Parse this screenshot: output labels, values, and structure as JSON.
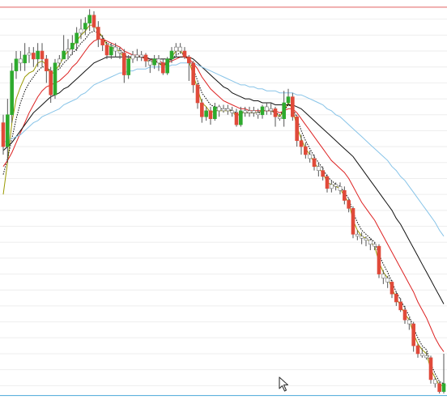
{
  "chart_data": {
    "type": "candlestick",
    "title": "",
    "xlabel": "",
    "ylabel": "",
    "grid": true,
    "ylim": [
      0,
      100
    ],
    "reference_lines": [
      {
        "value": 99.0,
        "color": "#e06060"
      },
      {
        "value": 1.5,
        "color": "#4aa8d8"
      }
    ],
    "colors": {
      "up": "#2eaa2e",
      "down": "#e04a3a",
      "neutral": "#ffffff",
      "wick": "#555555",
      "grid": "#eeeeee"
    },
    "candles": [
      [
        70.0,
        64.0,
        72.0,
        62.0
      ],
      [
        64.0,
        72.0,
        76.0,
        60.0
      ],
      [
        72.0,
        83.0,
        85.0,
        70.0
      ],
      [
        83.0,
        86.0,
        88.0,
        81.0
      ],
      [
        86.0,
        85.0,
        88.0,
        83.0
      ],
      [
        85.0,
        87.0,
        90.0,
        83.0
      ],
      [
        87.0,
        87.5,
        89.0,
        85.0
      ],
      [
        87.5,
        86.0,
        89.0,
        84.0
      ],
      [
        86.0,
        88.0,
        90.0,
        84.0
      ],
      [
        88.0,
        86.0,
        90.0,
        84.0
      ],
      [
        86.0,
        83.0,
        87.0,
        80.0
      ],
      [
        83.0,
        77.0,
        84.0,
        75.0
      ],
      [
        77.0,
        85.0,
        86.0,
        76.0
      ],
      [
        85.0,
        86.0,
        87.0,
        84.0
      ],
      [
        86.0,
        88.0,
        92.0,
        86.0
      ],
      [
        88.0,
        88.5,
        91.0,
        86.0
      ],
      [
        88.5,
        90.0,
        92.0,
        87.0
      ],
      [
        90.0,
        92.5,
        94.0,
        88.0
      ],
      [
        92.5,
        93.5,
        96.0,
        91.0
      ],
      [
        93.5,
        95.0,
        96.5,
        92.0
      ],
      [
        95.0,
        97.0,
        98.5,
        93.0
      ],
      [
        97.0,
        94.0,
        98.0,
        93.0
      ],
      [
        94.0,
        91.0,
        95.5,
        89.0
      ],
      [
        91.0,
        89.5,
        92.0,
        88.0
      ],
      [
        89.5,
        87.0,
        90.0,
        86.0
      ],
      [
        87.0,
        89.0,
        90.0,
        86.0
      ],
      [
        89.0,
        88.0,
        90.0,
        86.5
      ],
      [
        88.0,
        87.5,
        89.0,
        86.0
      ],
      [
        87.5,
        82.0,
        88.5,
        80.0
      ],
      [
        82.0,
        86.0,
        87.0,
        81.0
      ],
      [
        86.0,
        87.0,
        88.0,
        85.0
      ],
      [
        87.0,
        86.5,
        88.5,
        85.5
      ],
      [
        86.5,
        87.0,
        88.0,
        85.5
      ],
      [
        87.0,
        85.5,
        87.5,
        84.0
      ],
      [
        85.5,
        84.5,
        86.0,
        82.5
      ],
      [
        84.5,
        86.0,
        87.0,
        83.5
      ],
      [
        86.0,
        85.0,
        87.0,
        83.0
      ],
      [
        85.0,
        82.5,
        86.0,
        82.0
      ],
      [
        82.5,
        86.0,
        86.5,
        82.0
      ],
      [
        86.0,
        88.0,
        89.0,
        85.0
      ],
      [
        88.0,
        89.0,
        90.0,
        86.5
      ],
      [
        89.0,
        88.0,
        90.0,
        87.5
      ],
      [
        88.0,
        86.5,
        89.0,
        86.0
      ],
      [
        86.5,
        85.0,
        87.0,
        80.5
      ],
      [
        85.0,
        79.5,
        85.5,
        77.5
      ],
      [
        79.5,
        75.0,
        80.0,
        73.5
      ],
      [
        75.0,
        71.5,
        76.0,
        70.0
      ],
      [
        71.5,
        73.0,
        74.0,
        70.5
      ],
      [
        73.0,
        71.0,
        74.0,
        69.5
      ],
      [
        71.0,
        74.0,
        75.0,
        70.5
      ],
      [
        74.0,
        73.0,
        74.5,
        71.5
      ],
      [
        73.0,
        73.5,
        74.5,
        72.5
      ],
      [
        73.5,
        73.0,
        74.5,
        72.0
      ],
      [
        73.0,
        72.5,
        74.0,
        71.5
      ],
      [
        72.5,
        69.5,
        73.5,
        69.0
      ],
      [
        69.5,
        73.0,
        74.0,
        69.0
      ],
      [
        73.0,
        72.5,
        74.0,
        71.5
      ],
      [
        72.5,
        73.0,
        74.0,
        71.5
      ],
      [
        73.0,
        72.5,
        74.0,
        71.5
      ],
      [
        72.5,
        72.0,
        73.5,
        71.0
      ],
      [
        72.0,
        74.0,
        74.5,
        71.0
      ],
      [
        74.0,
        73.0,
        75.0,
        72.0
      ],
      [
        73.0,
        73.5,
        75.0,
        72.0
      ],
      [
        73.5,
        71.5,
        74.0,
        69.0
      ],
      [
        71.5,
        71.0,
        72.0,
        70.5
      ],
      [
        71.0,
        75.0,
        78.0,
        69.0
      ],
      [
        75.0,
        76.5,
        78.5,
        74.5
      ],
      [
        76.5,
        71.5,
        77.5,
        70.5
      ],
      [
        71.5,
        65.5,
        72.0,
        64.0
      ],
      [
        65.5,
        64.0,
        67.0,
        62.0
      ],
      [
        64.0,
        62.0,
        65.0,
        61.0
      ],
      [
        62.0,
        61.0,
        63.0,
        60.0
      ],
      [
        61.0,
        59.0,
        62.0,
        58.0
      ],
      [
        59.0,
        58.0,
        60.0,
        56.5
      ],
      [
        58.0,
        56.5,
        59.0,
        55.5
      ],
      [
        56.5,
        53.5,
        57.0,
        52.5
      ],
      [
        53.5,
        54.5,
        55.5,
        52.5
      ],
      [
        54.5,
        54.0,
        55.0,
        53.0
      ],
      [
        54.0,
        53.0,
        55.0,
        52.0
      ],
      [
        53.0,
        50.5,
        54.0,
        49.5
      ],
      [
        50.5,
        48.5,
        51.0,
        47.5
      ],
      [
        48.5,
        42.0,
        49.0,
        41.0
      ],
      [
        42.0,
        41.5,
        43.0,
        40.5
      ],
      [
        41.5,
        41.0,
        42.5,
        39.5
      ],
      [
        41.0,
        40.5,
        41.5,
        39.0
      ],
      [
        40.5,
        39.5,
        41.0,
        38.0
      ],
      [
        39.5,
        39.0,
        40.0,
        38.0
      ],
      [
        39.0,
        32.0,
        39.5,
        31.0
      ],
      [
        32.0,
        31.0,
        33.0,
        29.5
      ],
      [
        31.0,
        30.0,
        31.5,
        28.5
      ],
      [
        30.0,
        27.0,
        30.5,
        26.0
      ],
      [
        27.0,
        25.0,
        27.5,
        24.0
      ],
      [
        25.0,
        23.0,
        26.0,
        22.5
      ],
      [
        23.0,
        20.5,
        24.0,
        19.5
      ],
      [
        20.5,
        19.5,
        21.0,
        18.0
      ],
      [
        19.5,
        14.0,
        20.0,
        12.5
      ],
      [
        14.0,
        12.0,
        14.5,
        11.0
      ],
      [
        12.0,
        11.5,
        13.5,
        11.0
      ],
      [
        11.5,
        11.0,
        12.5,
        10.5
      ],
      [
        11.0,
        5.5,
        11.5,
        4.5
      ],
      [
        5.5,
        4.5,
        6.0,
        3.5
      ],
      [
        4.5,
        2.5,
        5.0,
        2.0
      ],
      [
        2.5,
        4.5,
        12.0,
        2.0
      ]
    ],
    "series": [
      {
        "color": "#999900",
        "dashed": false,
        "values": [
          52.0,
          60.0,
          70.0,
          76.0,
          79.0,
          81.5,
          82.5,
          83.0,
          85.0,
          85.5,
          84.5,
          82.0,
          83.0,
          84.5,
          86.5,
          88.0,
          89.0,
          90.5,
          92.0,
          93.0,
          94.5,
          94.5,
          93.0,
          91.5,
          89.5,
          89.0,
          88.5,
          88.0,
          86.0,
          86.0,
          86.5,
          86.5,
          86.5,
          86.0,
          85.0,
          85.5,
          85.0,
          84.0,
          85.0,
          86.5,
          88.0,
          88.0,
          87.0,
          85.5,
          82.0,
          78.5,
          75.0,
          74.0,
          72.5,
          73.0,
          73.0,
          73.0,
          73.0,
          73.0,
          71.5,
          72.5,
          72.5,
          72.5,
          72.5,
          72.5,
          73.0,
          73.0,
          73.0,
          72.5,
          71.5,
          73.0,
          75.0,
          73.5,
          69.0,
          66.0,
          63.5,
          62.0,
          60.0,
          58.5,
          57.5,
          55.0,
          54.5,
          54.0,
          53.5,
          51.5,
          50.0,
          45.5,
          43.0,
          41.5,
          41.0,
          40.0,
          39.0,
          35.0,
          32.5,
          31.0,
          28.5,
          26.0,
          24.0,
          22.0,
          20.5,
          17.0,
          14.5,
          13.0,
          12.0,
          8.0,
          6.0,
          4.0,
          4.0
        ]
      },
      {
        "color": "#000000",
        "dashed": true,
        "values": [
          57.0,
          61.0,
          66.0,
          71.0,
          75.0,
          78.0,
          80.0,
          81.5,
          83.0,
          84.0,
          84.0,
          83.0,
          83.0,
          83.5,
          85.0,
          86.0,
          87.5,
          88.5,
          90.0,
          91.0,
          92.5,
          93.0,
          92.5,
          91.5,
          90.0,
          89.5,
          89.0,
          88.5,
          87.0,
          86.5,
          86.5,
          86.5,
          86.5,
          86.0,
          85.5,
          85.5,
          85.0,
          84.5,
          85.0,
          86.0,
          87.0,
          87.5,
          87.0,
          86.0,
          83.5,
          80.5,
          77.5,
          76.0,
          74.5,
          74.0,
          73.5,
          73.5,
          73.5,
          73.0,
          72.5,
          72.5,
          72.5,
          72.5,
          72.5,
          72.5,
          73.0,
          73.0,
          73.0,
          72.5,
          72.0,
          73.0,
          74.5,
          74.0,
          71.0,
          68.0,
          65.5,
          63.5,
          61.5,
          60.0,
          58.5,
          56.5,
          55.5,
          54.5,
          54.0,
          52.5,
          51.0,
          47.5,
          45.0,
          43.0,
          42.0,
          41.0,
          40.0,
          37.0,
          34.5,
          32.5,
          30.0,
          27.5,
          25.5,
          23.5,
          21.5,
          18.5,
          16.0,
          14.0,
          13.0,
          9.5,
          7.0,
          5.0,
          4.5
        ]
      },
      {
        "color": "#dd2222",
        "dashed": false,
        "values": [
          59.0,
          60.5,
          62.5,
          65.0,
          67.5,
          70.0,
          72.5,
          74.5,
          76.5,
          78.0,
          79.0,
          79.5,
          80.0,
          80.5,
          81.5,
          82.5,
          84.0,
          85.0,
          86.5,
          88.0,
          89.5,
          90.5,
          91.0,
          91.0,
          90.5,
          90.0,
          89.5,
          89.0,
          88.0,
          87.5,
          87.0,
          87.0,
          86.5,
          86.0,
          86.0,
          85.5,
          85.5,
          85.0,
          85.0,
          85.5,
          86.0,
          86.5,
          86.5,
          86.0,
          85.0,
          83.5,
          81.5,
          80.0,
          78.5,
          77.5,
          76.5,
          75.5,
          75.0,
          74.5,
          74.0,
          73.5,
          73.5,
          73.0,
          73.0,
          73.0,
          73.0,
          73.0,
          73.0,
          73.0,
          72.5,
          73.0,
          73.5,
          73.5,
          72.5,
          71.0,
          69.5,
          68.0,
          66.5,
          65.0,
          63.5,
          62.0,
          60.5,
          59.5,
          58.5,
          57.5,
          56.0,
          54.0,
          52.0,
          50.0,
          48.5,
          47.0,
          45.5,
          43.5,
          41.5,
          39.5,
          37.5,
          35.5,
          33.5,
          31.5,
          29.5,
          27.5,
          25.0,
          23.0,
          21.0,
          18.5,
          16.0,
          14.0,
          12.5
        ]
      },
      {
        "color": "#111111",
        "dashed": false,
        "values": [
          63.0,
          64.0,
          65.0,
          66.5,
          68.0,
          69.5,
          71.0,
          72.5,
          73.5,
          74.5,
          75.5,
          76.5,
          77.0,
          77.5,
          78.5,
          79.0,
          80.0,
          81.0,
          82.0,
          83.0,
          84.0,
          85.0,
          85.5,
          86.0,
          86.5,
          86.5,
          86.5,
          86.5,
          86.5,
          86.5,
          86.5,
          86.5,
          86.5,
          86.5,
          86.0,
          86.0,
          86.0,
          86.0,
          86.0,
          86.0,
          86.5,
          86.5,
          86.5,
          86.5,
          86.0,
          85.0,
          84.0,
          83.0,
          82.0,
          81.0,
          80.0,
          79.0,
          78.5,
          77.5,
          77.0,
          76.5,
          76.0,
          76.0,
          75.5,
          75.5,
          75.0,
          75.0,
          75.0,
          74.5,
          74.5,
          74.5,
          74.5,
          74.5,
          74.0,
          73.5,
          72.5,
          71.5,
          70.5,
          69.5,
          68.5,
          67.5,
          66.5,
          65.5,
          64.5,
          63.5,
          62.5,
          61.5,
          60.0,
          58.5,
          57.0,
          55.5,
          54.0,
          52.5,
          51.0,
          49.5,
          48.0,
          46.0,
          44.5,
          42.5,
          40.5,
          38.5,
          36.5,
          34.5,
          32.5,
          30.5,
          28.5,
          26.5,
          24.5
        ]
      },
      {
        "color": "#88c4e8",
        "dashed": false,
        "values": [
          65.0,
          65.5,
          66.0,
          66.5,
          67.0,
          68.0,
          69.0,
          70.0,
          70.5,
          71.5,
          72.0,
          72.5,
          73.0,
          73.5,
          74.5,
          75.0,
          75.5,
          76.0,
          77.0,
          77.5,
          78.5,
          79.5,
          80.0,
          80.5,
          81.0,
          81.5,
          82.0,
          82.5,
          82.5,
          83.0,
          83.0,
          83.5,
          83.5,
          83.5,
          84.0,
          84.0,
          84.0,
          84.0,
          84.0,
          84.5,
          84.5,
          85.0,
          85.0,
          85.0,
          85.0,
          84.5,
          84.0,
          83.5,
          83.0,
          82.5,
          82.0,
          81.5,
          81.0,
          80.5,
          80.0,
          79.5,
          79.5,
          79.0,
          79.0,
          78.5,
          78.5,
          78.0,
          78.0,
          78.0,
          77.5,
          77.5,
          77.5,
          77.5,
          77.0,
          77.0,
          76.5,
          76.0,
          75.5,
          75.0,
          74.5,
          73.5,
          73.0,
          72.0,
          71.5,
          70.5,
          69.5,
          68.5,
          67.5,
          66.5,
          65.5,
          64.5,
          63.5,
          62.5,
          61.5,
          60.5,
          59.0,
          58.0,
          56.5,
          55.5,
          54.0,
          52.5,
          51.0,
          49.5,
          48.0,
          46.5,
          45.0,
          43.0,
          41.5
        ]
      }
    ]
  }
}
